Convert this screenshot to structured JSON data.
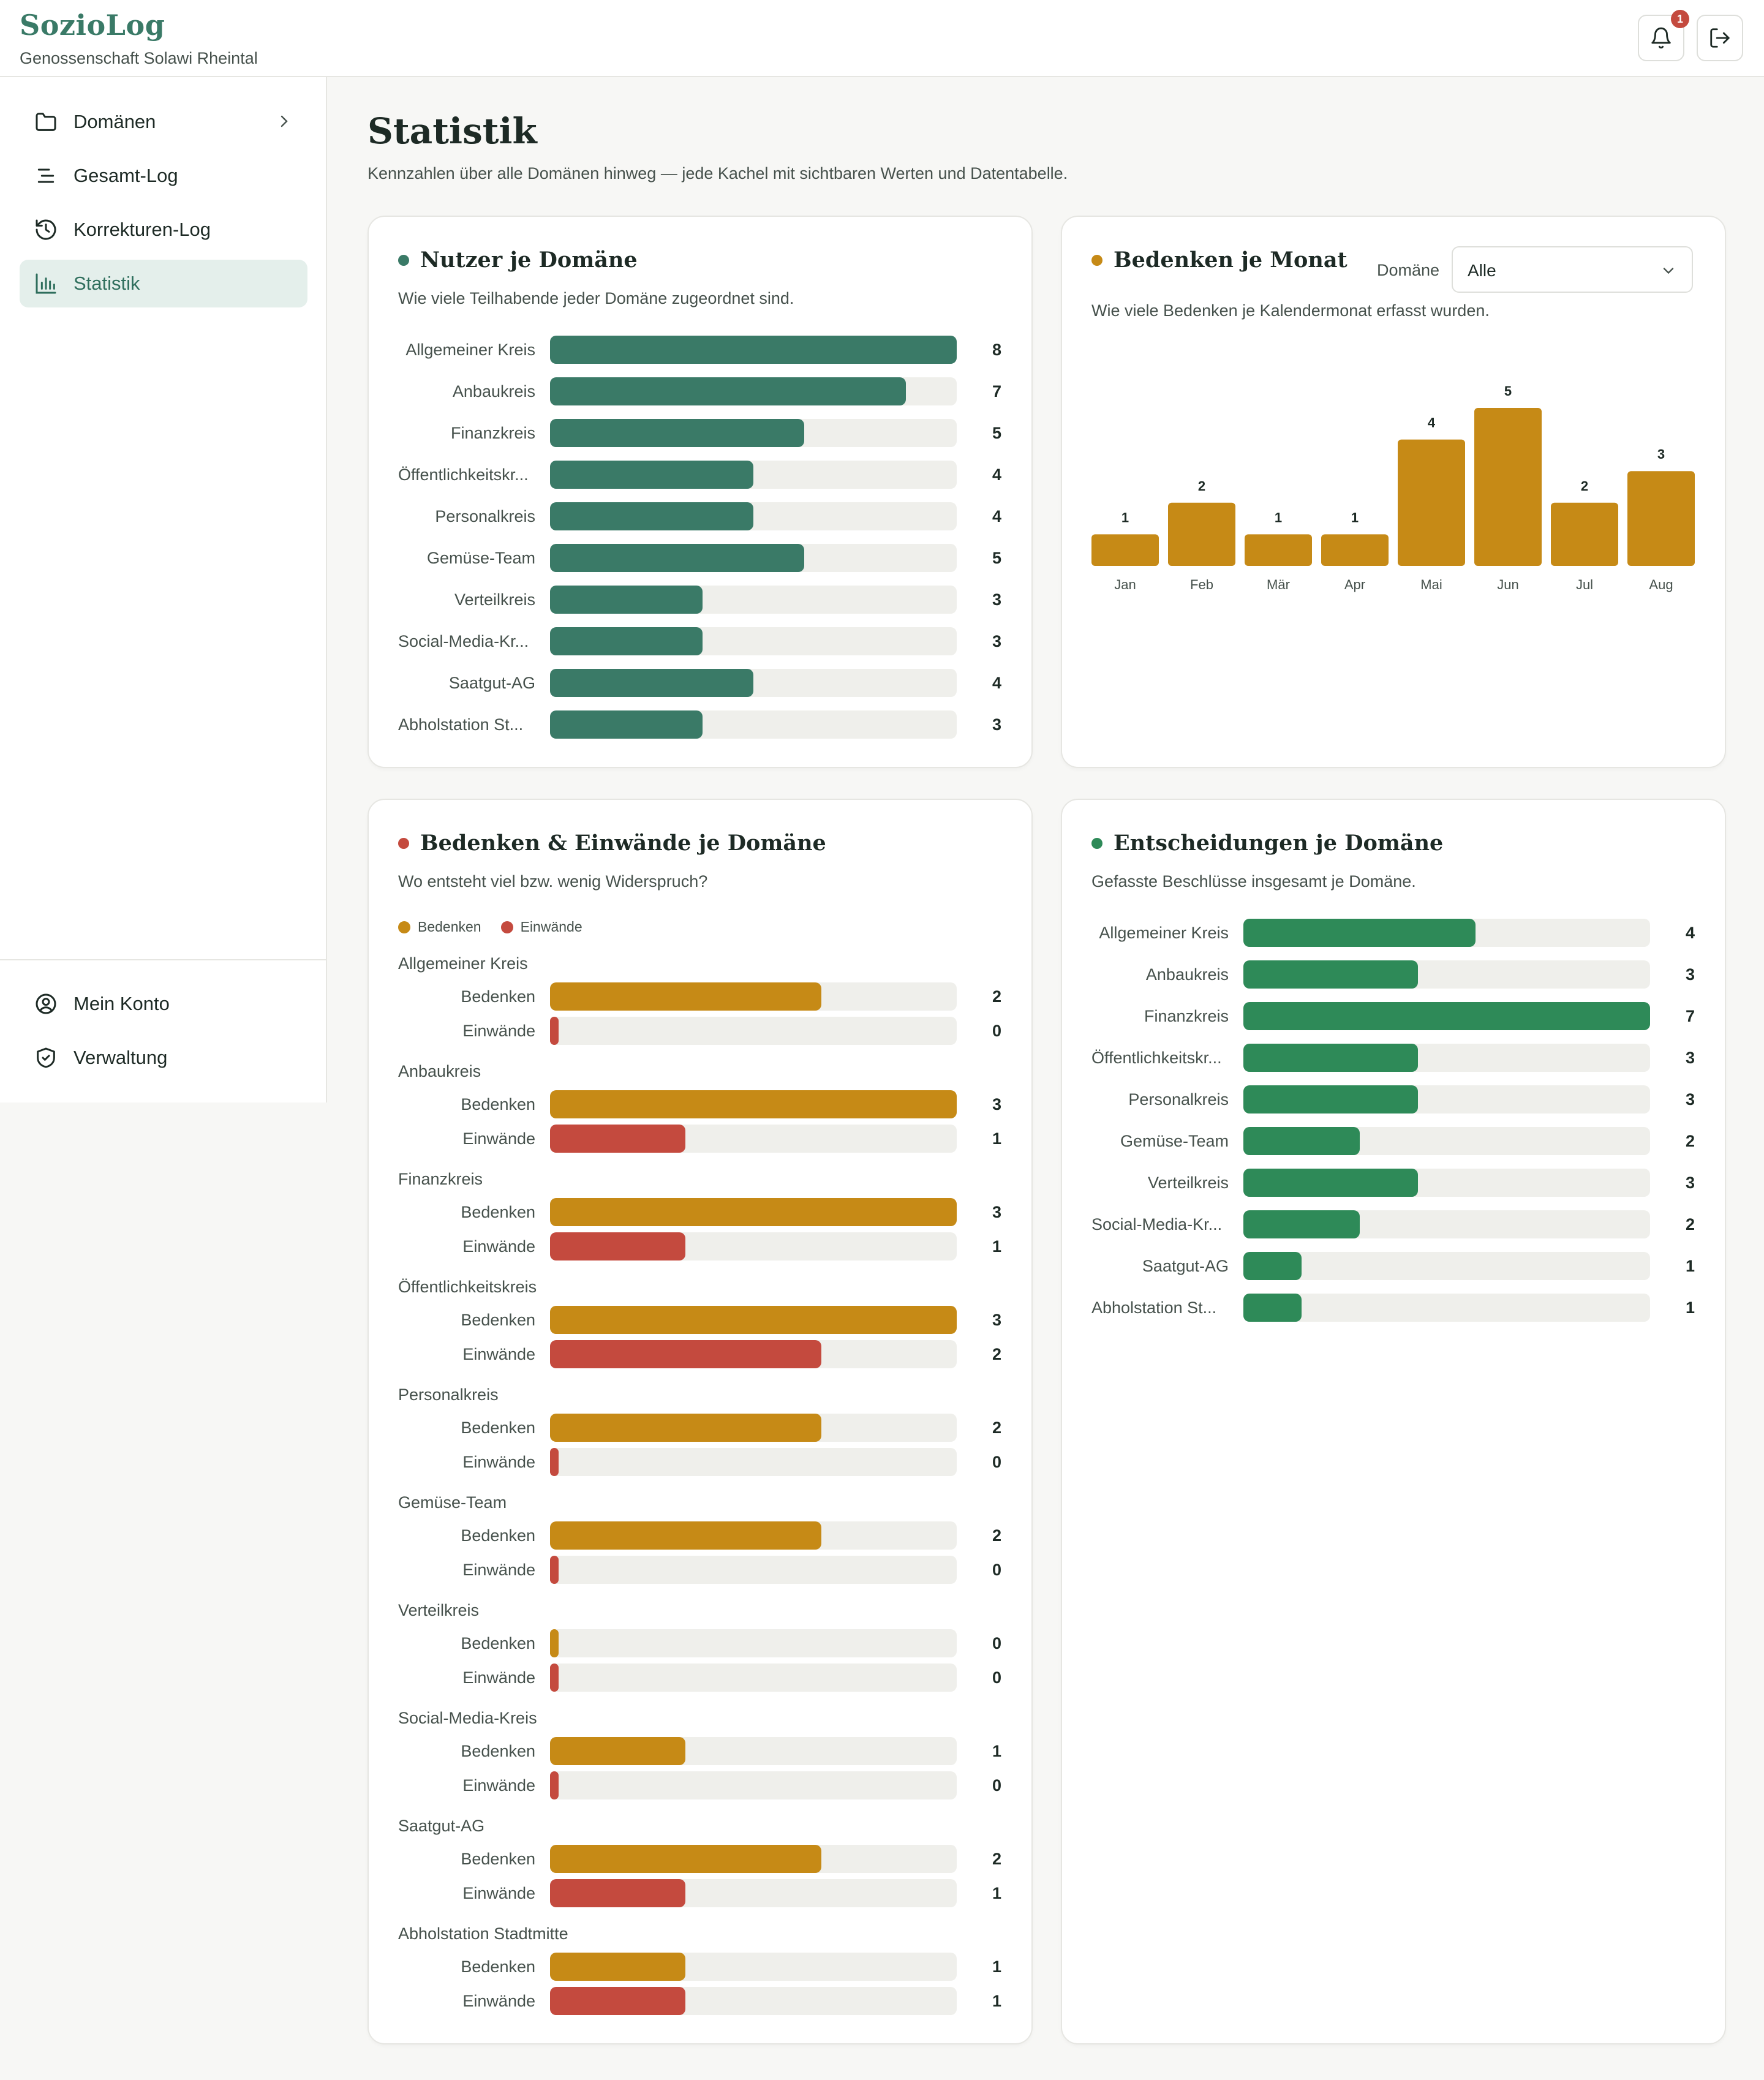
{
  "app": {
    "name": "SozioLog",
    "org": "Genossenschaft Solawi Rheintal",
    "notifications": "1"
  },
  "colors": {
    "green": "#3a7a67",
    "gold": "#c68a16",
    "red": "#c44a3e",
    "decision": "#2e8a58",
    "track": "#efefeb"
  },
  "nav": {
    "items": [
      {
        "label": "Domänen",
        "icon": "folder-icon"
      },
      {
        "label": "Gesamt-Log",
        "icon": "list-icon"
      },
      {
        "label": "Korrekturen-Log",
        "icon": "history-icon"
      },
      {
        "label": "Statistik",
        "icon": "bar-chart-icon"
      }
    ],
    "bottom": [
      {
        "label": "Mein Konto",
        "icon": "user-circle-icon"
      },
      {
        "label": "Verwaltung",
        "icon": "shield-icon"
      }
    ]
  },
  "page": {
    "title": "Statistik",
    "subtitle": "Kennzahlen über alle Domänen hinweg — jede Kachel mit sichtbaren Werten und Datentabelle."
  },
  "chart_data": [
    {
      "type": "bar",
      "orientation": "horizontal",
      "title": "Nutzer je Domäne",
      "subtitle": "Wie viele Teilhabende jeder Domäne zugeordnet sind.",
      "categories": [
        "Allgemeiner Kreis",
        "Anbaukreis",
        "Finanzkreis",
        "Öffentlichkeitskr...",
        "Personalkreis",
        "Gemüse-Team",
        "Verteilkreis",
        "Social-Media-Kr...",
        "Saatgut-AG",
        "Abholstation St..."
      ],
      "values": [
        8,
        7,
        5,
        4,
        4,
        5,
        3,
        3,
        4,
        3
      ],
      "xlim": [
        0,
        8
      ]
    },
    {
      "type": "bar",
      "title": "Bedenken je Monat",
      "subtitle": "Wie viele Bedenken je Kalendermonat erfasst wurden.",
      "filter": {
        "label": "Domäne",
        "value": "Alle"
      },
      "categories": [
        "Jan",
        "Feb",
        "Mär",
        "Apr",
        "Mai",
        "Jun",
        "Jul",
        "Aug"
      ],
      "values": [
        1,
        2,
        1,
        1,
        4,
        5,
        2,
        3
      ],
      "ylim": [
        0,
        5
      ]
    },
    {
      "type": "bar",
      "orientation": "horizontal",
      "title": "Bedenken & Einwände je Domäne",
      "subtitle": "Wo entsteht viel bzw. wenig Widerspruch?",
      "legend": [
        "Bedenken",
        "Einwände"
      ],
      "categories": [
        "Allgemeiner Kreis",
        "Anbaukreis",
        "Finanzkreis",
        "Öffentlichkeitskreis",
        "Personalkreis",
        "Gemüse-Team",
        "Verteilkreis",
        "Social-Media-Kreis",
        "Saatgut-AG",
        "Abholstation Stadtmitte"
      ],
      "series": [
        {
          "name": "Bedenken",
          "values": [
            2,
            3,
            3,
            3,
            2,
            2,
            0,
            1,
            2,
            1
          ]
        },
        {
          "name": "Einwände",
          "values": [
            0,
            1,
            1,
            2,
            0,
            0,
            0,
            0,
            1,
            1
          ]
        }
      ],
      "xlim": [
        0,
        3
      ]
    },
    {
      "type": "bar",
      "orientation": "horizontal",
      "title": "Entscheidungen je Domäne",
      "subtitle": "Gefasste Beschlüsse insgesamt je Domäne.",
      "categories": [
        "Allgemeiner Kreis",
        "Anbaukreis",
        "Finanzkreis",
        "Öffentlichkeitskr...",
        "Personalkreis",
        "Gemüse-Team",
        "Verteilkreis",
        "Social-Media-Kr...",
        "Saatgut-AG",
        "Abholstation St..."
      ],
      "values": [
        4,
        3,
        7,
        3,
        3,
        2,
        3,
        2,
        1,
        1
      ],
      "xlim": [
        0,
        7
      ]
    }
  ]
}
